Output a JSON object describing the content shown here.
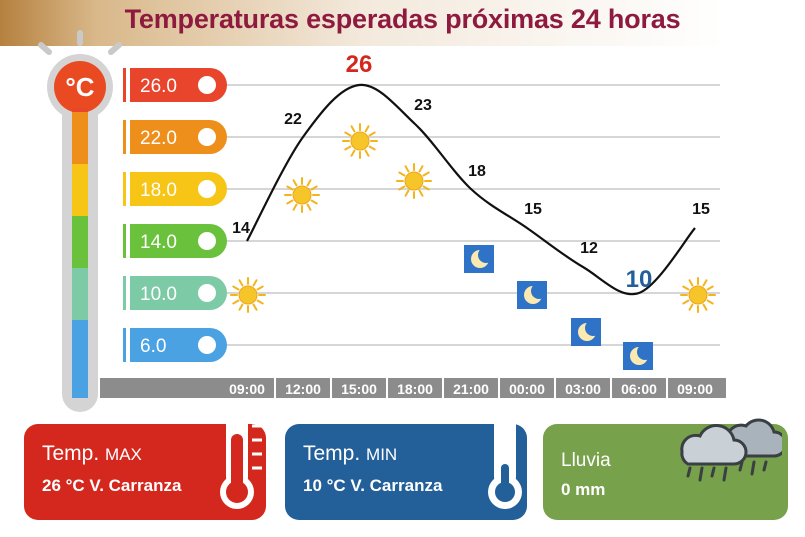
{
  "title": "Temperaturas esperadas próximas 24 horas",
  "thermometer_unit": "°C",
  "scale_labels": [
    "26.0",
    "22.0",
    "18.0",
    "14.0",
    "10.0",
    "6.0"
  ],
  "scale_colors": [
    "#e8452c",
    "#ef8f1b",
    "#f6c515",
    "#6ac13b",
    "#7dcaa6",
    "#4aa2e3"
  ],
  "chart_data": {
    "type": "line",
    "title": "Temperaturas esperadas próximas 24 horas",
    "xlabel": "",
    "ylabel": "°C",
    "categories": [
      "09:00",
      "12:00",
      "15:00",
      "18:00",
      "21:00",
      "00:00",
      "03:00",
      "06:00",
      "09:00"
    ],
    "series": [
      {
        "values": [
          14,
          22,
          26,
          23,
          18,
          15,
          12,
          10,
          15
        ]
      }
    ],
    "value_labels": [
      "14",
      "22",
      "26",
      "23",
      "18",
      "15",
      "12",
      "10",
      "15"
    ],
    "ylim": [
      6,
      26
    ],
    "grid": true,
    "weather_icons": [
      "sun",
      "sun",
      "sun",
      "sun",
      "moon",
      "moon",
      "moon",
      "moon",
      "sun"
    ]
  },
  "cards": {
    "max": {
      "title": "Temp.",
      "title_small": "MAX",
      "text": "26 °C  V. Carranza"
    },
    "min": {
      "title": "Temp.",
      "title_small": "MIN",
      "text": "10 °C  V. Carranza"
    },
    "rain": {
      "title": "Lluvia",
      "text": "0 mm"
    }
  }
}
